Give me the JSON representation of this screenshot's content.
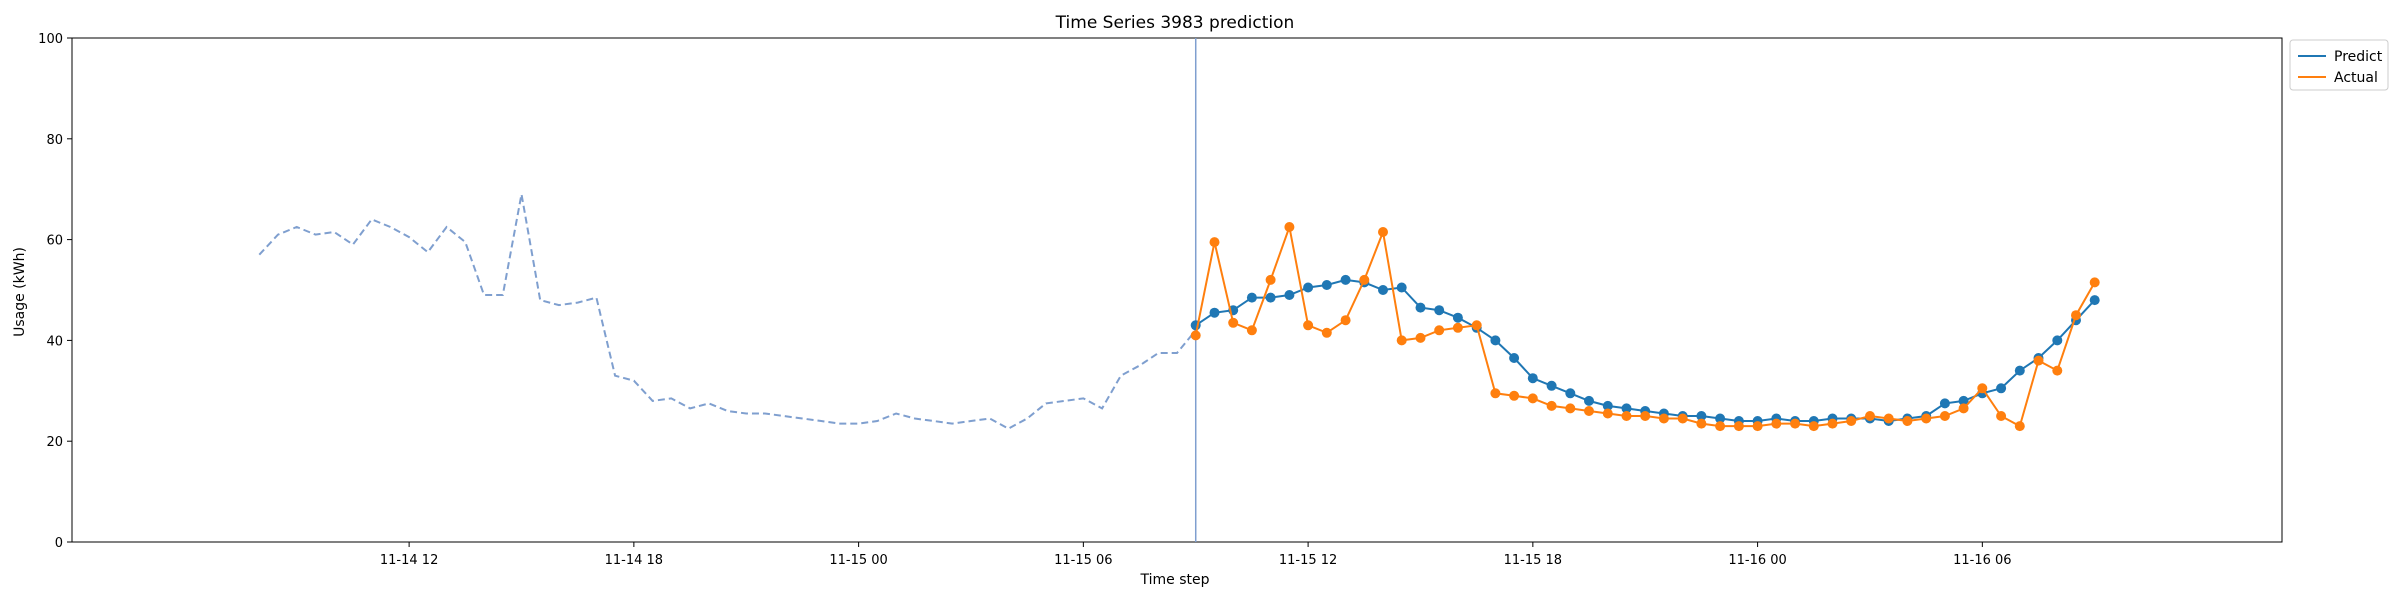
{
  "chart_data": {
    "type": "line",
    "title": "Time Series 3983 prediction",
    "xlabel": "Time step",
    "ylabel": "Usage (kWh)",
    "ylim": [
      0,
      100
    ],
    "yticks": [
      0,
      20,
      40,
      60,
      80,
      100
    ],
    "xticks": [
      "11-14 12",
      "11-14 18",
      "11-15 00",
      "11-15 06",
      "11-15 12",
      "11-15 18",
      "11-16 00",
      "11-16 06"
    ],
    "legend": {
      "placement": "outside-top-right",
      "entries": [
        "Predict",
        "Actual"
      ]
    },
    "forecast_start": "11-15 09:00",
    "colors": {
      "predict": "#1f77b4",
      "actual": "#ff7f0e",
      "history": "#7f9fcf",
      "divider": "#7f9fcf"
    },
    "history": {
      "x": [
        "11-14 08:00",
        "11-14 08:30",
        "11-14 09:00",
        "11-14 09:30",
        "11-14 10:00",
        "11-14 10:30",
        "11-14 11:00",
        "11-14 11:30",
        "11-14 12:00",
        "11-14 12:30",
        "11-14 13:00",
        "11-14 13:30",
        "11-14 14:00",
        "11-14 14:30",
        "11-14 15:00",
        "11-14 15:30",
        "11-14 16:00",
        "11-14 16:30",
        "11-14 17:00",
        "11-14 17:30",
        "11-14 18:00",
        "11-14 18:30",
        "11-14 19:00",
        "11-14 19:30",
        "11-14 20:00",
        "11-14 20:30",
        "11-14 21:00",
        "11-14 21:30",
        "11-14 22:00",
        "11-14 22:30",
        "11-14 23:00",
        "11-14 23:30",
        "11-15 00:00",
        "11-15 00:30",
        "11-15 01:00",
        "11-15 01:30",
        "11-15 02:00",
        "11-15 02:30",
        "11-15 03:00",
        "11-15 03:30",
        "11-15 04:00",
        "11-15 04:30",
        "11-15 05:00",
        "11-15 05:30",
        "11-15 06:00",
        "11-15 06:30",
        "11-15 07:00",
        "11-15 07:30",
        "11-15 08:00",
        "11-15 08:30",
        "11-15 09:00"
      ],
      "y": [
        57,
        61,
        62.5,
        61,
        61.5,
        59,
        64,
        62.5,
        60.5,
        57.5,
        62.5,
        59.5,
        49,
        49,
        69,
        48,
        47,
        47.5,
        48.5,
        33,
        32,
        28,
        28.5,
        26.5,
        27.5,
        26,
        25.5,
        25.5,
        25,
        24.5,
        24,
        23.5,
        23.5,
        24,
        25.5,
        24.5,
        24,
        23.5,
        24,
        24.5,
        22.5,
        24.5,
        27.5,
        28,
        28.5,
        26.5,
        33,
        35,
        37.5,
        37.5,
        42
      ]
    },
    "series": [
      {
        "name": "Predict",
        "x": [
          "11-15 09:00",
          "11-15 09:30",
          "11-15 10:00",
          "11-15 10:30",
          "11-15 11:00",
          "11-15 11:30",
          "11-15 12:00",
          "11-15 12:30",
          "11-15 13:00",
          "11-15 13:30",
          "11-15 14:00",
          "11-15 14:30",
          "11-15 15:00",
          "11-15 15:30",
          "11-15 16:00",
          "11-15 16:30",
          "11-15 17:00",
          "11-15 17:30",
          "11-15 18:00",
          "11-15 18:30",
          "11-15 19:00",
          "11-15 19:30",
          "11-15 20:00",
          "11-15 20:30",
          "11-15 21:00",
          "11-15 21:30",
          "11-15 22:00",
          "11-15 22:30",
          "11-15 23:00",
          "11-15 23:30",
          "11-16 00:00",
          "11-16 00:30",
          "11-16 01:00",
          "11-16 01:30",
          "11-16 02:00",
          "11-16 02:30",
          "11-16 03:00",
          "11-16 03:30",
          "11-16 04:00",
          "11-16 04:30",
          "11-16 05:00",
          "11-16 05:30",
          "11-16 06:00",
          "11-16 06:30",
          "11-16 07:00",
          "11-16 07:30",
          "11-16 08:00",
          "11-16 08:30",
          "11-16 09:00"
        ],
        "values": [
          43,
          45.5,
          46,
          48.5,
          48.5,
          49,
          50.5,
          51,
          52,
          51.5,
          50,
          50.5,
          46.5,
          46,
          44.5,
          42.5,
          40,
          36.5,
          32.5,
          31,
          29.5,
          28,
          27,
          26.5,
          26,
          25.5,
          25,
          25,
          24.5,
          24,
          24,
          24.5,
          24,
          24,
          24.5,
          24.5,
          24.5,
          24,
          24.5,
          25,
          27.5,
          28,
          29.5,
          30.5,
          34,
          36.5,
          40,
          44,
          48
        ]
      },
      {
        "name": "Actual",
        "x": [
          "11-15 09:00",
          "11-15 09:30",
          "11-15 10:00",
          "11-15 10:30",
          "11-15 11:00",
          "11-15 11:30",
          "11-15 12:00",
          "11-15 12:30",
          "11-15 13:00",
          "11-15 13:30",
          "11-15 14:00",
          "11-15 14:30",
          "11-15 15:00",
          "11-15 15:30",
          "11-15 16:00",
          "11-15 16:30",
          "11-15 17:00",
          "11-15 17:30",
          "11-15 18:00",
          "11-15 18:30",
          "11-15 19:00",
          "11-15 19:30",
          "11-15 20:00",
          "11-15 20:30",
          "11-15 21:00",
          "11-15 21:30",
          "11-15 22:00",
          "11-15 22:30",
          "11-15 23:00",
          "11-15 23:30",
          "11-16 00:00",
          "11-16 00:30",
          "11-16 01:00",
          "11-16 01:30",
          "11-16 02:00",
          "11-16 02:30",
          "11-16 03:00",
          "11-16 03:30",
          "11-16 04:00",
          "11-16 04:30",
          "11-16 05:00",
          "11-16 05:30",
          "11-16 06:00",
          "11-16 06:30",
          "11-16 07:00",
          "11-16 07:30",
          "11-16 08:00",
          "11-16 08:30",
          "11-16 09:00"
        ],
        "values": [
          41,
          59.5,
          43.5,
          42,
          52,
          62.5,
          43,
          41.5,
          44,
          52,
          61.5,
          40,
          40.5,
          42,
          42.5,
          43,
          29.5,
          29,
          28.5,
          27,
          26.5,
          26,
          25.5,
          25,
          25,
          24.5,
          24.5,
          23.5,
          23,
          23,
          23,
          23.5,
          23.5,
          23,
          23.5,
          24,
          25,
          24.5,
          24,
          24.5,
          25,
          26.5,
          30.5,
          25,
          23,
          36,
          34,
          45,
          51.5
        ]
      }
    ]
  }
}
